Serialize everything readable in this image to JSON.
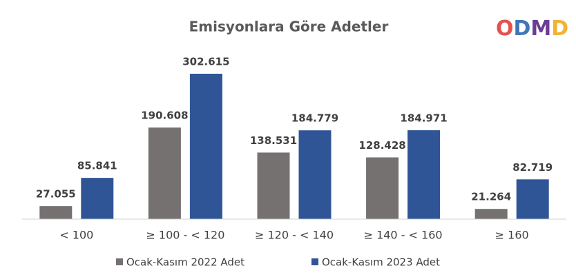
{
  "chart_data": {
    "type": "bar",
    "title": "Emisyonlara Göre Adetler",
    "logo": "ODMD",
    "categories": [
      "< 100",
      "≥ 100 - < 120",
      "≥ 120 - < 140",
      "≥ 140 - < 160",
      "≥  160"
    ],
    "series": [
      {
        "name": "Ocak-Kasım 2022 Adet",
        "color": "#767171",
        "values": [
          27055,
          190608,
          138531,
          128428,
          21264
        ],
        "value_labels": [
          "27.055",
          "190.608",
          "138.531",
          "128.428",
          "21.264"
        ]
      },
      {
        "name": "Ocak-Kasım 2023 Adet",
        "color": "#2F5597",
        "values": [
          85841,
          302615,
          184779,
          184971,
          82719
        ],
        "value_labels": [
          "85.841",
          "302.615",
          "184.779",
          "184.971",
          "82.719"
        ]
      }
    ],
    "legend": "bottom"
  }
}
